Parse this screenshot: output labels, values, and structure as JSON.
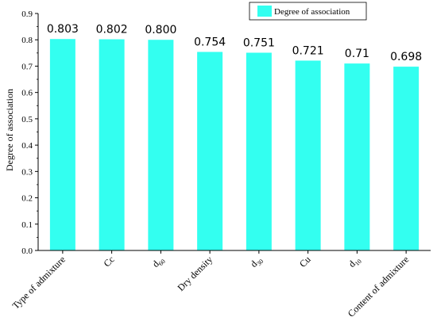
{
  "chart_data": {
    "type": "bar",
    "title": "",
    "xlabel": "",
    "ylabel": "Degree of association",
    "ylim": [
      0,
      0.9
    ],
    "yticks": [
      "0.0",
      "0.1",
      "0.2",
      "0.3",
      "0.4",
      "0.5",
      "0.6",
      "0.7",
      "0.8",
      "0.9"
    ],
    "categories": [
      {
        "text": "Type of admixture"
      },
      {
        "text": "Cc"
      },
      {
        "text": "d",
        "sub": "60"
      },
      {
        "text": "Dry density"
      },
      {
        "text": "d",
        "sub": "30"
      },
      {
        "text": "Cu"
      },
      {
        "text": "d",
        "sub": "10"
      },
      {
        "text": "Content of admixture"
      }
    ],
    "series": [
      {
        "name": "Degree of association",
        "color": "#33FFF0",
        "values": [
          0.803,
          0.802,
          0.8,
          0.754,
          0.751,
          0.721,
          0.71,
          0.698
        ],
        "data_labels": [
          "0.803",
          "0.802",
          "0.800",
          "0.754",
          "0.751",
          "0.721",
          "0.71",
          "0.698"
        ]
      }
    ],
    "legend_position": "top-right",
    "grid": false
  }
}
